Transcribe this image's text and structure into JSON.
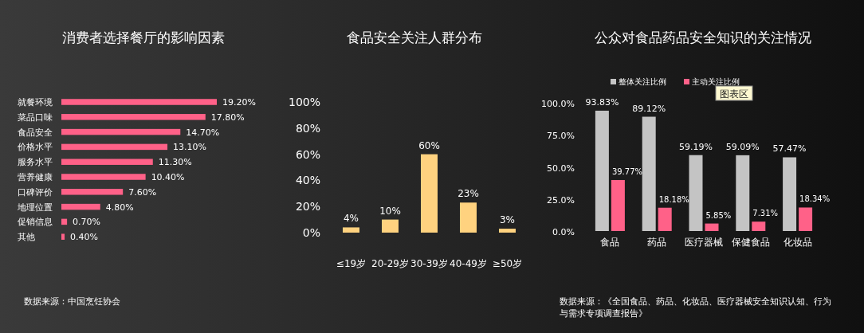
{
  "chart_data": [
    {
      "type": "bar",
      "orientation": "horizontal",
      "title": "消费者选择餐厅的影响因素",
      "categories": [
        "就餐环境",
        "菜品口味",
        "食品安全",
        "价格水平",
        "服务水平",
        "营养健康",
        "口碑评价",
        "地理位置",
        "促销信息",
        "其他"
      ],
      "values": [
        19.2,
        17.8,
        14.7,
        13.1,
        11.3,
        10.4,
        7.6,
        4.8,
        0.7,
        0.4
      ],
      "color": "#ff6188",
      "value_labels": [
        "19.20%",
        "17.80%",
        "14.70%",
        "13.10%",
        "11.30%",
        "10.40%",
        "7.60%",
        "4.80%",
        "0.70%",
        "0.40%"
      ],
      "annotations": [
        "数据来源：中国烹饪协会"
      ]
    },
    {
      "type": "bar",
      "title": "食品安全关注人群分布",
      "categories": [
        "≤19岁",
        "20-29岁",
        "30-39岁",
        "40-49岁",
        "≥50岁"
      ],
      "values": [
        4,
        10,
        60,
        23,
        3
      ],
      "color": "#ffd27f",
      "value_labels": [
        "4%",
        "10%",
        "60%",
        "23%",
        "3%"
      ],
      "ylim": [
        0,
        100
      ],
      "yticks": [
        {
          "value": 0,
          "label": "0%"
        },
        {
          "value": 20,
          "label": "20%"
        },
        {
          "value": 40,
          "label": "40%"
        },
        {
          "value": 60,
          "label": "60%"
        },
        {
          "value": 80,
          "label": "80%"
        },
        {
          "value": 100,
          "label": "100%"
        }
      ]
    },
    {
      "type": "bar",
      "title": "公众对食品药品安全知识的关注情况",
      "categories": [
        "食品",
        "药品",
        "医疗器械",
        "保健食品",
        "化妆品"
      ],
      "series": [
        {
          "name": "整体关注比例",
          "color": "#c4c4c4",
          "values": [
            93.83,
            89.12,
            59.19,
            59.09,
            57.47
          ],
          "value_labels": [
            "93.83%",
            "89.12%",
            "59.19%",
            "59.09%",
            "57.47%"
          ]
        },
        {
          "name": "主动关注比例",
          "color": "#ff6188",
          "values": [
            39.77,
            18.18,
            5.85,
            7.31,
            18.34
          ],
          "value_labels": [
            "39.77%",
            "18.18%",
            "5.85%",
            "7.31%",
            "18.34%"
          ]
        }
      ],
      "legend": "top",
      "ylim": [
        0,
        100
      ],
      "yticks": [
        {
          "value": 0,
          "label": "0.0%"
        },
        {
          "value": 25,
          "label": "25.0%"
        },
        {
          "value": 50,
          "label": "50.0%"
        },
        {
          "value": 75,
          "label": "75.0%"
        },
        {
          "value": 100,
          "label": "100.0%"
        }
      ],
      "annotations": [
        "图表区",
        "数据来源：《全国食品、药品、化妆品、医疗器械安全知识认知、行为与需求专项调查报告》"
      ]
    }
  ]
}
